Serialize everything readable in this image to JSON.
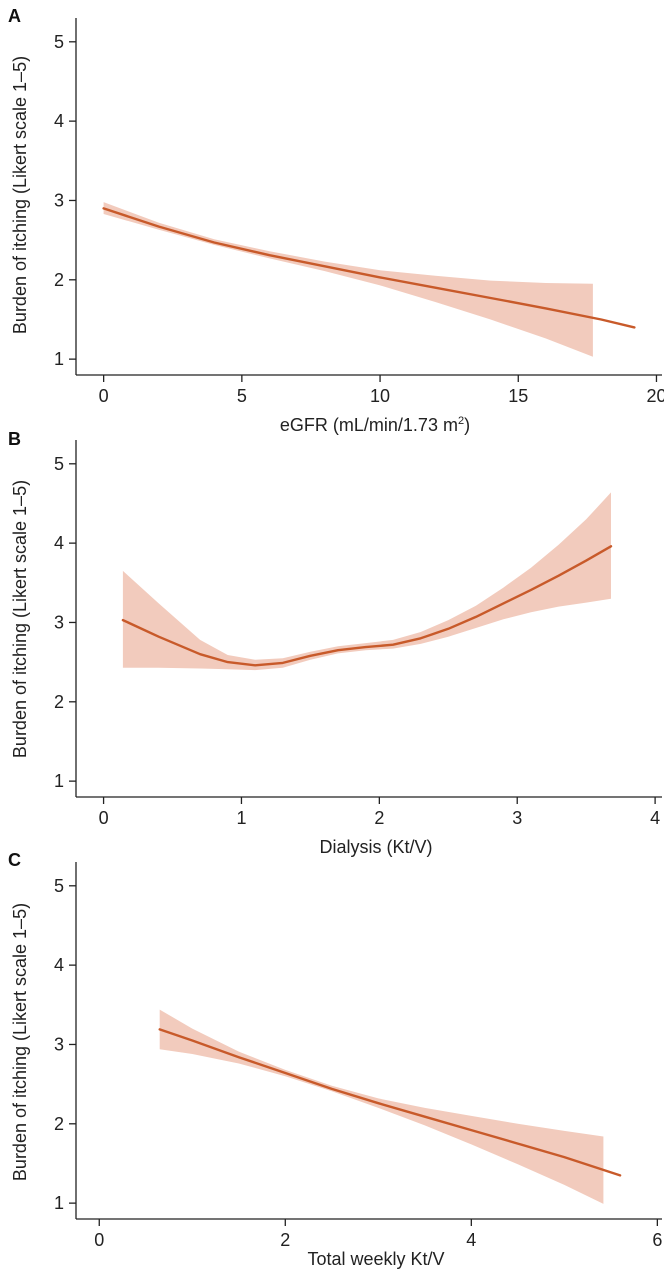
{
  "colors": {
    "line": "#c85a2a",
    "band": "#f2cbbd",
    "axis": "#222222"
  },
  "chart_data": [
    {
      "type": "line",
      "panel": "A",
      "xlabel": "eGFR (mL/min/1.73 m",
      "xlabel_sup": "2",
      "xlabel_end": ")",
      "ylabel": "Burden of itching (Likert scale 1–5)",
      "xlim": [
        -1,
        20.2
      ],
      "ylim": [
        0.8,
        5.3
      ],
      "xticks": [
        0,
        5,
        10,
        15,
        20
      ],
      "yticks": [
        1,
        2,
        3,
        4,
        5
      ],
      "series": [
        {
          "x": [
            0,
            2,
            4,
            6,
            8,
            10,
            12,
            14,
            16,
            18,
            19.2
          ],
          "y": [
            2.9,
            2.67,
            2.47,
            2.31,
            2.17,
            2.03,
            1.9,
            1.77,
            1.64,
            1.5,
            1.4
          ]
        }
      ],
      "band": {
        "x": [
          0,
          2,
          4,
          6,
          8,
          10,
          12,
          14,
          16,
          17.7
        ],
        "lower": [
          2.83,
          2.63,
          2.44,
          2.27,
          2.11,
          1.93,
          1.72,
          1.5,
          1.26,
          1.03
        ],
        "upper": [
          2.98,
          2.72,
          2.51,
          2.36,
          2.23,
          2.12,
          2.05,
          1.99,
          1.96,
          1.95
        ]
      }
    },
    {
      "type": "line",
      "panel": "B",
      "xlabel": "Dialysis (Kt/V)",
      "ylabel": "Burden of itching (Likert scale 1–5)",
      "xlim": [
        -0.2,
        4.05
      ],
      "ylim": [
        0.8,
        5.3
      ],
      "xticks": [
        0,
        1,
        2,
        3,
        4
      ],
      "yticks": [
        1,
        2,
        3,
        4,
        5
      ],
      "series": [
        {
          "x": [
            0.14,
            0.4,
            0.7,
            0.9,
            1.1,
            1.3,
            1.5,
            1.7,
            1.9,
            2.1,
            2.3,
            2.5,
            2.7,
            2.9,
            3.1,
            3.3,
            3.5,
            3.68
          ],
          "y": [
            3.03,
            2.82,
            2.6,
            2.5,
            2.46,
            2.49,
            2.58,
            2.65,
            2.69,
            2.72,
            2.8,
            2.92,
            3.07,
            3.24,
            3.41,
            3.59,
            3.78,
            3.96
          ]
        }
      ],
      "band": {
        "x": [
          0.14,
          0.4,
          0.7,
          0.9,
          1.1,
          1.3,
          1.5,
          1.7,
          1.9,
          2.1,
          2.3,
          2.5,
          2.7,
          2.9,
          3.1,
          3.3,
          3.5,
          3.68
        ],
        "lower": [
          2.43,
          2.43,
          2.42,
          2.41,
          2.4,
          2.43,
          2.53,
          2.61,
          2.65,
          2.67,
          2.73,
          2.82,
          2.93,
          3.04,
          3.13,
          3.2,
          3.25,
          3.3
        ],
        "upper": [
          3.65,
          3.24,
          2.78,
          2.59,
          2.53,
          2.55,
          2.63,
          2.7,
          2.74,
          2.78,
          2.88,
          3.03,
          3.21,
          3.44,
          3.69,
          3.98,
          4.3,
          4.64
        ]
      }
    },
    {
      "type": "line",
      "panel": "C",
      "xlabel": "Total weekly Kt/V",
      "ylabel": "Burden of itching (Likert scale 1–5)",
      "xlim": [
        -0.25,
        6.05
      ],
      "ylim": [
        0.8,
        5.3
      ],
      "xticks": [
        0,
        2,
        4,
        6
      ],
      "yticks": [
        1,
        2,
        3,
        4,
        5
      ],
      "series": [
        {
          "x": [
            0.65,
            1.0,
            1.5,
            2.0,
            2.5,
            3.0,
            3.5,
            4.0,
            4.5,
            5.0,
            5.6
          ],
          "y": [
            3.19,
            3.05,
            2.84,
            2.64,
            2.44,
            2.26,
            2.09,
            1.92,
            1.75,
            1.58,
            1.35
          ]
        }
      ],
      "band": {
        "x": [
          0.65,
          1.0,
          1.5,
          2.0,
          2.5,
          3.0,
          3.5,
          4.0,
          4.5,
          5.0,
          5.42
        ],
        "lower": [
          2.94,
          2.88,
          2.76,
          2.6,
          2.41,
          2.2,
          1.98,
          1.74,
          1.49,
          1.23,
          0.99
        ],
        "upper": [
          3.44,
          3.2,
          2.91,
          2.68,
          2.48,
          2.32,
          2.2,
          2.1,
          2.0,
          1.91,
          1.84
        ]
      }
    }
  ]
}
